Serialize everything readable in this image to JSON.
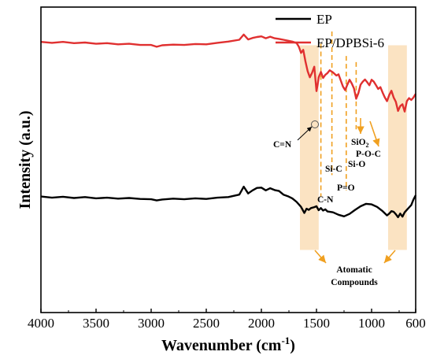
{
  "chart_data": {
    "type": "line",
    "xlabel": "Wavenumber (cm",
    "xlabel_sup": "-1",
    "xlabel_close": ")",
    "ylabel": "Intensity (a.u.)",
    "xlim": [
      4000,
      600
    ],
    "x_reversed": true,
    "ylim": [
      0,
      100
    ],
    "xticks": [
      4000,
      3500,
      3000,
      2500,
      2000,
      1500,
      1000,
      600
    ],
    "yticks_shown": false,
    "grid": false,
    "legend_position": "top-right",
    "colors": {
      "EP": "#000000",
      "EP/DPBSi-6": "#e03030",
      "bands": "#fbe3c2",
      "arrows": "#f0a020",
      "dashes": "#f0a020"
    },
    "series": [
      {
        "name": "EP",
        "color": "#000000",
        "x": [
          4000,
          3900,
          3800,
          3700,
          3600,
          3500,
          3400,
          3300,
          3200,
          3100,
          3000,
          2950,
          2900,
          2800,
          2700,
          2600,
          2500,
          2400,
          2300,
          2200,
          2160,
          2120,
          2080,
          2040,
          2000,
          1960,
          1920,
          1880,
          1840,
          1800,
          1760,
          1720,
          1680,
          1640,
          1610,
          1590,
          1570,
          1550,
          1520,
          1500,
          1480,
          1460,
          1440,
          1420,
          1400,
          1350,
          1300,
          1250,
          1200,
          1150,
          1100,
          1050,
          1000,
          950,
          900,
          860,
          840,
          820,
          800,
          780,
          760,
          740,
          720,
          700,
          680,
          660,
          640,
          620,
          600
        ],
        "y": [
          38,
          37.6,
          37.9,
          37.5,
          37.8,
          37.4,
          37.6,
          37.3,
          37.5,
          37.2,
          37.1,
          36.7,
          37.0,
          37.3,
          37.1,
          37.4,
          37.2,
          37.6,
          37.8,
          38.6,
          41.2,
          39.0,
          40.0,
          40.8,
          40.9,
          40.0,
          40.7,
          40.1,
          39.8,
          38.6,
          38.1,
          37.4,
          36.2,
          34.6,
          32.6,
          34.0,
          33.6,
          34.2,
          34.5,
          34.8,
          33.5,
          34.2,
          33.4,
          33.8,
          33.1,
          32.8,
          32.0,
          31.5,
          32.3,
          33.6,
          34.8,
          35.6,
          35.4,
          34.6,
          33.2,
          31.8,
          32.4,
          33.2,
          33.0,
          32.2,
          31.2,
          32.4,
          31.4,
          32.8,
          33.6,
          34.4,
          35.2,
          37.0,
          38.4
        ]
      },
      {
        "name": "EP/DPBSi-6",
        "color": "#e03030",
        "x": [
          4000,
          3900,
          3800,
          3700,
          3600,
          3500,
          3400,
          3300,
          3200,
          3100,
          3000,
          2950,
          2900,
          2800,
          2700,
          2600,
          2500,
          2400,
          2300,
          2200,
          2160,
          2120,
          2080,
          2040,
          2000,
          1960,
          1920,
          1880,
          1840,
          1800,
          1760,
          1720,
          1680,
          1660,
          1640,
          1620,
          1600,
          1580,
          1560,
          1540,
          1520,
          1500,
          1490,
          1480,
          1460,
          1440,
          1420,
          1400,
          1380,
          1350,
          1320,
          1300,
          1280,
          1260,
          1240,
          1220,
          1200,
          1180,
          1160,
          1140,
          1120,
          1100,
          1080,
          1060,
          1040,
          1020,
          1000,
          980,
          960,
          940,
          920,
          900,
          880,
          860,
          840,
          820,
          800,
          780,
          760,
          740,
          720,
          700,
          680,
          660,
          640,
          620,
          600
        ],
        "y": [
          88.6,
          88.3,
          88.6,
          88.2,
          88.4,
          88.0,
          88.2,
          87.8,
          88.0,
          87.6,
          87.6,
          87.0,
          87.5,
          87.7,
          87.6,
          87.9,
          87.8,
          88.3,
          88.7,
          89.3,
          91.0,
          89.4,
          89.9,
          90.2,
          90.4,
          89.8,
          90.3,
          89.8,
          89.6,
          89.3,
          89.0,
          88.7,
          88.2,
          87.0,
          85.0,
          86.0,
          82.2,
          79.0,
          77.0,
          78.5,
          80.5,
          72.5,
          74.5,
          77.0,
          78.8,
          76.8,
          77.8,
          78.4,
          79.3,
          78.6,
          77.6,
          78.0,
          76.0,
          74.0,
          72.8,
          74.6,
          76.2,
          75.0,
          73.4,
          70.0,
          71.8,
          74.6,
          75.6,
          76.3,
          75.4,
          74.4,
          76.2,
          75.6,
          74.4,
          73.2,
          73.8,
          72.0,
          70.4,
          69.2,
          71.2,
          72.6,
          70.4,
          69.0,
          66.0,
          67.6,
          68.2,
          65.8,
          69.2,
          70.2,
          69.6,
          70.4,
          71.6
        ]
      }
    ],
    "bands": [
      {
        "from": 1650,
        "to": 1480
      },
      {
        "from": 850,
        "to": 680
      }
    ],
    "dashed_lines": [
      1460,
      1360,
      1230,
      1140
    ],
    "annotations": {
      "cn_double": "C=N",
      "cn_single": "C-N",
      "si_c": "Si-C",
      "p_o_double": "P=O",
      "si_o": "Si-O",
      "sio2_base": "SiO",
      "sio2_sub": "2",
      "p_o_c": "P-O-C",
      "aromatic_line1": "Atomatic",
      "aromatic_line2": "Compounds"
    }
  }
}
